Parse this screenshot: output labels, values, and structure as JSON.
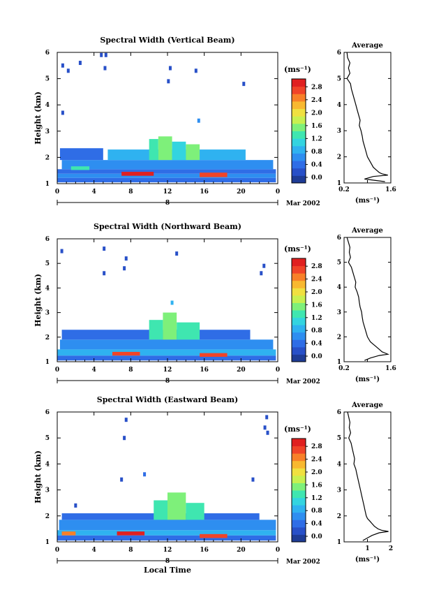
{
  "panels": [
    {
      "title": "Spectral Width (Vertical Beam)",
      "ylabel": "Height (km)",
      "y_ticks": [
        "1",
        "2",
        "3",
        "4",
        "5",
        "6"
      ],
      "x_ticks": [
        "0",
        "4",
        "8",
        "12",
        "16",
        "20",
        "0"
      ],
      "day_label": "8",
      "month_label": "Mar 2002",
      "xlabel": "",
      "colorbar": {
        "unit": "(ms⁻¹)",
        "tick_labels": [
          "0.0",
          "0.4",
          "0.8",
          "1.2",
          "1.6",
          "2.0",
          "2.4",
          "2.8"
        ]
      },
      "average": {
        "title": "Average",
        "xlabel": "(ms⁻¹)",
        "x_tick_labels": [
          "0.2",
          "",
          "1.6"
        ],
        "y_ticks": [
          "1",
          "2",
          "3",
          "4",
          "5",
          "6"
        ]
      }
    },
    {
      "title": "Spectral Width (Northward Beam)",
      "ylabel": "Height (km)",
      "y_ticks": [
        "1",
        "2",
        "3",
        "4",
        "5",
        "6"
      ],
      "x_ticks": [
        "0",
        "4",
        "8",
        "12",
        "16",
        "20",
        "0"
      ],
      "day_label": "8",
      "month_label": "Mar 2002",
      "xlabel": "",
      "colorbar": {
        "unit": "(ms⁻¹)",
        "tick_labels": [
          "0.0",
          "0.4",
          "0.8",
          "1.2",
          "1.6",
          "2.0",
          "2.4",
          "2.8"
        ]
      },
      "average": {
        "title": "Average",
        "xlabel": "(ms⁻¹)",
        "x_tick_labels": [
          "0.2",
          "",
          "1.6"
        ],
        "y_ticks": [
          "1",
          "2",
          "3",
          "4",
          "5",
          "6"
        ]
      }
    },
    {
      "title": "Spectral Width (Eastward Beam)",
      "ylabel": "Height (km)",
      "y_ticks": [
        "1",
        "2",
        "3",
        "4",
        "5",
        "6"
      ],
      "x_ticks": [
        "0",
        "4",
        "8",
        "12",
        "16",
        "20",
        "0"
      ],
      "day_label": "8",
      "month_label": "Mar 2002",
      "xlabel": "Local Time",
      "colorbar": {
        "unit": "(ms⁻¹)",
        "tick_labels": [
          "0.0",
          "0.4",
          "0.8",
          "1.2",
          "1.6",
          "2.0",
          "2.4",
          "2.8"
        ]
      },
      "average": {
        "title": "Average",
        "xlabel": "(ms⁻¹)",
        "x_tick_labels": [
          "",
          "1",
          "2"
        ],
        "y_ticks": [
          "1",
          "2",
          "3",
          "4",
          "5",
          "6"
        ]
      }
    }
  ],
  "chart_data": [
    {
      "type": "heatmap",
      "title": "Spectral Width (Vertical Beam)",
      "xlabel": "",
      "ylabel": "Height (km)",
      "xlim": [
        0,
        24
      ],
      "ylim": [
        1,
        6
      ],
      "colorbar_range": [
        0,
        3.0
      ],
      "colorscale": [
        "#1e3c96",
        "#2850c8",
        "#2f6de6",
        "#2e8ef0",
        "#2fb2f0",
        "#33d4e0",
        "#3fe6b0",
        "#7ef07a",
        "#c8f050",
        "#f0e040",
        "#f8b830",
        "#f88028",
        "#f04428",
        "#e02020"
      ],
      "blocks": [
        {
          "x0": 0.0,
          "x1": 23.8,
          "y0": 1.05,
          "y1": 1.22,
          "v": 0.5
        },
        {
          "x0": 0.0,
          "x1": 23.8,
          "y0": 1.22,
          "y1": 1.38,
          "v": 0.8
        },
        {
          "x0": 0.0,
          "x1": 23.8,
          "y0": 1.38,
          "y1": 1.55,
          "v": 0.6
        },
        {
          "x0": 0.5,
          "x1": 23.5,
          "y0": 1.55,
          "y1": 1.9,
          "v": 0.7
        },
        {
          "x0": 0.3,
          "x1": 5.0,
          "y0": 1.9,
          "y1": 2.35,
          "v": 0.5
        },
        {
          "x0": 5.5,
          "x1": 20.5,
          "y0": 1.9,
          "y1": 2.3,
          "v": 0.9
        },
        {
          "x0": 1.5,
          "x1": 3.5,
          "y0": 1.52,
          "y1": 1.66,
          "v": 1.3
        },
        {
          "x0": 7.0,
          "x1": 10.5,
          "y0": 1.3,
          "y1": 1.45,
          "v": 2.8
        },
        {
          "x0": 15.5,
          "x1": 18.5,
          "y0": 1.25,
          "y1": 1.42,
          "v": 2.7
        },
        {
          "x0": 10.0,
          "x1": 11.0,
          "y0": 1.9,
          "y1": 2.7,
          "v": 1.3
        },
        {
          "x0": 11.0,
          "x1": 12.5,
          "y0": 1.9,
          "y1": 2.8,
          "v": 1.5
        },
        {
          "x0": 12.5,
          "x1": 14.0,
          "y0": 1.9,
          "y1": 2.6,
          "v": 1.2
        },
        {
          "x0": 14.0,
          "x1": 15.5,
          "y0": 1.9,
          "y1": 2.5,
          "v": 1.6
        }
      ],
      "specks": [
        {
          "x": 0.6,
          "y": 5.5,
          "v": 0.4
        },
        {
          "x": 1.2,
          "y": 5.3,
          "v": 0.4
        },
        {
          "x": 2.5,
          "y": 5.6,
          "v": 0.4
        },
        {
          "x": 4.8,
          "y": 5.9,
          "v": 0.4
        },
        {
          "x": 5.3,
          "y": 5.9,
          "v": 0.4
        },
        {
          "x": 5.2,
          "y": 5.4,
          "v": 0.4
        },
        {
          "x": 12.3,
          "y": 5.4,
          "v": 0.4
        },
        {
          "x": 15.1,
          "y": 5.3,
          "v": 0.4
        },
        {
          "x": 12.1,
          "y": 4.9,
          "v": 0.4
        },
        {
          "x": 20.3,
          "y": 4.8,
          "v": 0.4
        },
        {
          "x": 0.6,
          "y": 3.7,
          "v": 0.4
        },
        {
          "x": 15.4,
          "y": 3.4,
          "v": 0.8
        }
      ]
    },
    {
      "type": "heatmap",
      "title": "Spectral Width (Northward Beam)",
      "xlabel": "",
      "ylabel": "Height (km)",
      "xlim": [
        0,
        24
      ],
      "ylim": [
        1,
        6
      ],
      "colorbar_range": [
        0,
        3.0
      ],
      "colorscale": [
        "#1e3c96",
        "#2850c8",
        "#2f6de6",
        "#2e8ef0",
        "#2fb2f0",
        "#33d4e0",
        "#3fe6b0",
        "#7ef07a",
        "#c8f050",
        "#f0e040",
        "#f8b830",
        "#f88028",
        "#f04428",
        "#e02020"
      ],
      "blocks": [
        {
          "x0": 0.0,
          "x1": 23.8,
          "y0": 1.05,
          "y1": 1.25,
          "v": 0.6
        },
        {
          "x0": 0.0,
          "x1": 23.8,
          "y0": 1.25,
          "y1": 1.5,
          "v": 0.9
        },
        {
          "x0": 0.3,
          "x1": 23.5,
          "y0": 1.5,
          "y1": 1.9,
          "v": 0.7
        },
        {
          "x0": 0.5,
          "x1": 21.0,
          "y0": 1.9,
          "y1": 2.3,
          "v": 0.5
        },
        {
          "x0": 6.0,
          "x1": 9.0,
          "y0": 1.25,
          "y1": 1.4,
          "v": 2.7
        },
        {
          "x0": 15.5,
          "x1": 18.5,
          "y0": 1.2,
          "y1": 1.35,
          "v": 2.6
        },
        {
          "x0": 10.0,
          "x1": 11.5,
          "y0": 1.9,
          "y1": 2.7,
          "v": 1.4
        },
        {
          "x0": 11.5,
          "x1": 13.0,
          "y0": 1.9,
          "y1": 3.0,
          "v": 1.6
        },
        {
          "x0": 13.0,
          "x1": 15.5,
          "y0": 1.9,
          "y1": 2.6,
          "v": 1.3
        }
      ],
      "specks": [
        {
          "x": 0.5,
          "y": 5.5,
          "v": 0.4
        },
        {
          "x": 5.1,
          "y": 5.6,
          "v": 0.4
        },
        {
          "x": 7.5,
          "y": 5.2,
          "v": 0.4
        },
        {
          "x": 7.3,
          "y": 4.8,
          "v": 0.4
        },
        {
          "x": 5.1,
          "y": 4.6,
          "v": 0.4
        },
        {
          "x": 13.0,
          "y": 5.4,
          "v": 0.4
        },
        {
          "x": 22.5,
          "y": 4.9,
          "v": 0.4
        },
        {
          "x": 22.2,
          "y": 4.6,
          "v": 0.4
        },
        {
          "x": 12.5,
          "y": 3.4,
          "v": 0.9
        }
      ]
    },
    {
      "type": "heatmap",
      "title": "Spectral Width (Eastward Beam)",
      "xlabel": "Local Time",
      "ylabel": "Height (km)",
      "xlim": [
        0,
        24
      ],
      "ylim": [
        1,
        6
      ],
      "colorbar_range": [
        0,
        3.0
      ],
      "colorscale": [
        "#1e3c96",
        "#2850c8",
        "#2f6de6",
        "#2e8ef0",
        "#2fb2f0",
        "#33d4e0",
        "#3fe6b0",
        "#7ef07a",
        "#c8f050",
        "#f0e040",
        "#f8b830",
        "#f88028",
        "#f04428",
        "#e02020"
      ],
      "blocks": [
        {
          "x0": 0.0,
          "x1": 23.8,
          "y0": 1.05,
          "y1": 1.25,
          "v": 0.5
        },
        {
          "x0": 0.0,
          "x1": 23.8,
          "y0": 1.25,
          "y1": 1.45,
          "v": 0.9
        },
        {
          "x0": 0.2,
          "x1": 23.8,
          "y0": 1.45,
          "y1": 1.85,
          "v": 0.7
        },
        {
          "x0": 0.5,
          "x1": 22.0,
          "y0": 1.85,
          "y1": 2.1,
          "v": 0.5
        },
        {
          "x0": 6.5,
          "x1": 9.5,
          "y0": 1.25,
          "y1": 1.4,
          "v": 2.8
        },
        {
          "x0": 15.5,
          "x1": 18.5,
          "y0": 1.15,
          "y1": 1.3,
          "v": 2.7
        },
        {
          "x0": 0.5,
          "x1": 2.0,
          "y0": 1.25,
          "y1": 1.4,
          "v": 2.4
        },
        {
          "x0": 10.5,
          "x1": 12.0,
          "y0": 1.85,
          "y1": 2.6,
          "v": 1.4
        },
        {
          "x0": 12.0,
          "x1": 14.0,
          "y0": 1.85,
          "y1": 2.9,
          "v": 1.6
        },
        {
          "x0": 14.0,
          "x1": 16.0,
          "y0": 1.85,
          "y1": 2.5,
          "v": 1.3
        }
      ],
      "specks": [
        {
          "x": 7.5,
          "y": 5.7,
          "v": 0.4
        },
        {
          "x": 7.3,
          "y": 5.0,
          "v": 0.4
        },
        {
          "x": 22.8,
          "y": 5.8,
          "v": 0.4
        },
        {
          "x": 22.6,
          "y": 5.4,
          "v": 0.4
        },
        {
          "x": 22.9,
          "y": 5.2,
          "v": 0.4
        },
        {
          "x": 9.5,
          "y": 3.6,
          "v": 0.6
        },
        {
          "x": 7.0,
          "y": 3.4,
          "v": 0.4
        },
        {
          "x": 21.3,
          "y": 3.4,
          "v": 0.4
        },
        {
          "x": 2.0,
          "y": 2.4,
          "v": 0.4
        }
      ]
    }
  ],
  "average_profiles": [
    {
      "type": "line",
      "title": "Average",
      "xlim": [
        0.2,
        1.8
      ],
      "ylim": [
        1,
        6
      ],
      "x": [
        0.3,
        0.32,
        0.4,
        0.35,
        0.4,
        0.3,
        0.42,
        0.45,
        0.5,
        0.55,
        0.6,
        0.65,
        0.7,
        0.75,
        0.72,
        0.78,
        0.82,
        0.85,
        0.9,
        0.95,
        1.0,
        1.05,
        1.1,
        1.15,
        1.2,
        1.3,
        1.4,
        1.5,
        1.7,
        1.2,
        0.9,
        1.6
      ],
      "y": [
        6.0,
        5.8,
        5.6,
        5.4,
        5.2,
        5.0,
        4.8,
        4.6,
        4.4,
        4.2,
        4.0,
        3.8,
        3.6,
        3.4,
        3.2,
        3.0,
        2.8,
        2.6,
        2.4,
        2.2,
        2.0,
        1.9,
        1.8,
        1.7,
        1.6,
        1.5,
        1.4,
        1.35,
        1.3,
        1.25,
        1.15,
        1.05
      ]
    },
    {
      "type": "line",
      "title": "Average",
      "xlim": [
        0.2,
        1.8
      ],
      "ylim": [
        1,
        6
      ],
      "x": [
        0.3,
        0.35,
        0.4,
        0.38,
        0.42,
        0.35,
        0.45,
        0.5,
        0.55,
        0.6,
        0.58,
        0.65,
        0.7,
        0.72,
        0.75,
        0.8,
        0.82,
        0.85,
        0.9,
        0.95,
        1.0,
        1.05,
        1.1,
        1.2,
        1.3,
        1.4,
        1.5,
        1.6,
        1.7,
        1.4,
        1.1,
        0.9
      ],
      "y": [
        6.0,
        5.8,
        5.6,
        5.4,
        5.2,
        5.0,
        4.8,
        4.6,
        4.4,
        4.2,
        4.0,
        3.8,
        3.6,
        3.4,
        3.2,
        3.0,
        2.8,
        2.6,
        2.4,
        2.2,
        2.0,
        1.9,
        1.8,
        1.7,
        1.6,
        1.5,
        1.4,
        1.35,
        1.3,
        1.25,
        1.15,
        1.05
      ]
    },
    {
      "type": "line",
      "title": "Average",
      "xlim": [
        0,
        2
      ],
      "ylim": [
        1,
        6
      ],
      "x": [
        0.15,
        0.2,
        0.25,
        0.22,
        0.28,
        0.2,
        0.3,
        0.35,
        0.4,
        0.45,
        0.42,
        0.5,
        0.55,
        0.6,
        0.65,
        0.7,
        0.75,
        0.8,
        0.85,
        0.9,
        0.95,
        1.0,
        1.1,
        1.2,
        1.3,
        1.45,
        1.6,
        1.9,
        1.5,
        1.2,
        1.0,
        0.8
      ],
      "y": [
        6.0,
        5.8,
        5.6,
        5.4,
        5.2,
        5.0,
        4.8,
        4.6,
        4.4,
        4.2,
        4.0,
        3.8,
        3.6,
        3.4,
        3.2,
        3.0,
        2.8,
        2.6,
        2.4,
        2.2,
        2.0,
        1.9,
        1.8,
        1.7,
        1.6,
        1.5,
        1.45,
        1.4,
        1.35,
        1.25,
        1.15,
        1.05
      ]
    }
  ]
}
